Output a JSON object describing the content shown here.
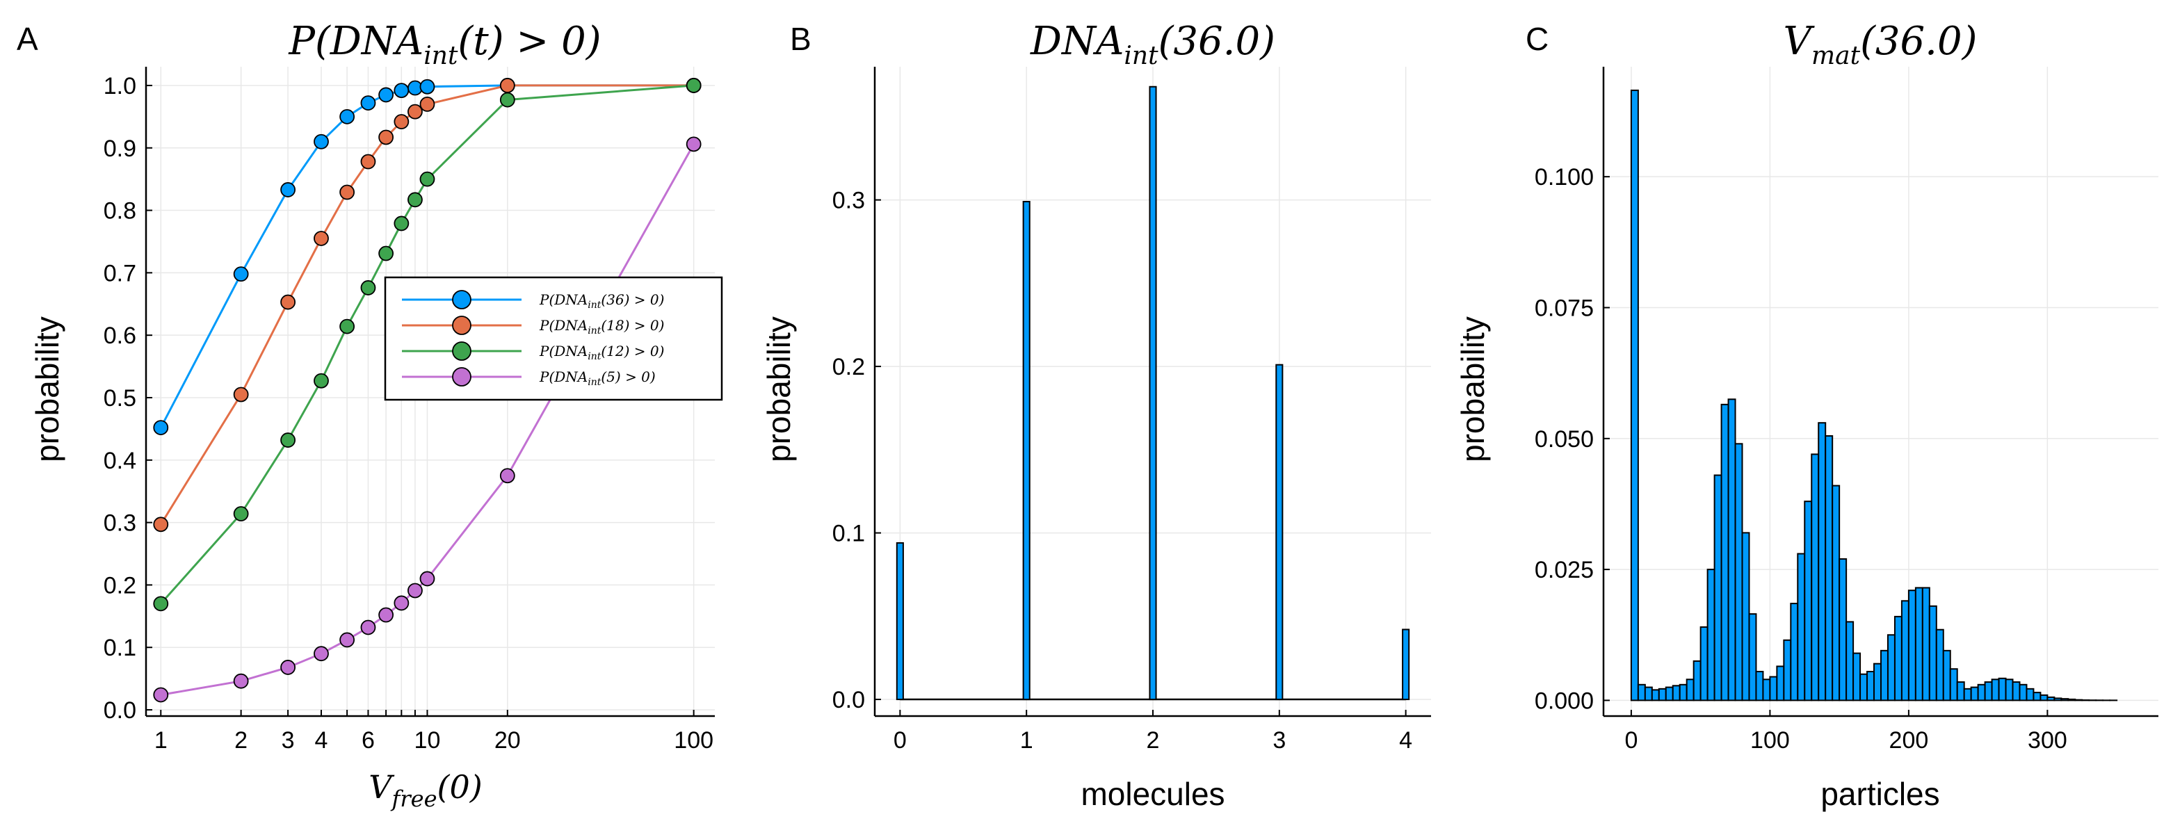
{
  "chart_data": [
    {
      "panel": "A",
      "type": "line",
      "title": "P(DNA_int(t) > 0)",
      "title_parts": {
        "pre": "P(DNA",
        "sub": "int",
        "post": "(t) > 0)"
      },
      "xlabel_parts": {
        "pre": "V",
        "sub": "free",
        "post": "(0)"
      },
      "ylabel": "probability",
      "xscale": "log",
      "xlim": [
        0.88,
        120
      ],
      "ylim": [
        -0.01,
        1.03
      ],
      "xticks": [
        1,
        2,
        3,
        4,
        6,
        10,
        20,
        100
      ],
      "xtick_labels": [
        "1",
        "2",
        "3",
        "4",
        "6",
        "10",
        "20",
        "100"
      ],
      "xgrid": [
        1,
        2,
        3,
        4,
        5,
        6,
        7,
        8,
        9,
        10,
        20,
        100
      ],
      "yticks": [
        0.0,
        0.1,
        0.2,
        0.3,
        0.4,
        0.5,
        0.6,
        0.7,
        0.8,
        0.9,
        1.0
      ],
      "ytick_labels": [
        "0.0",
        "0.1",
        "0.2",
        "0.3",
        "0.4",
        "0.5",
        "0.6",
        "0.7",
        "0.8",
        "0.9",
        "1.0"
      ],
      "legend_position": "center-right",
      "series": [
        {
          "name": "P(DNA_int(36) > 0)",
          "label_parts": {
            "pre": "P(DNA",
            "sub": "int",
            "post": "(36) > 0)"
          },
          "color": "#009AFA",
          "x": [
            1,
            2,
            3,
            4,
            5,
            6,
            7,
            8,
            9,
            10,
            20,
            100
          ],
          "y": [
            0.452,
            0.698,
            0.833,
            0.91,
            0.95,
            0.972,
            0.985,
            0.992,
            0.996,
            0.998,
            1.0,
            1.0
          ]
        },
        {
          "name": "P(DNA_int(18) > 0)",
          "label_parts": {
            "pre": "P(DNA",
            "sub": "int",
            "post": "(18) > 0)"
          },
          "color": "#E36F47",
          "x": [
            1,
            2,
            3,
            4,
            5,
            6,
            7,
            8,
            9,
            10,
            20,
            100
          ],
          "y": [
            0.297,
            0.505,
            0.653,
            0.755,
            0.829,
            0.878,
            0.917,
            0.942,
            0.958,
            0.97,
            1.0,
            1.0
          ]
        },
        {
          "name": "P(DNA_int(12) > 0)",
          "label_parts": {
            "pre": "P(DNA",
            "sub": "int",
            "post": "(12) > 0)"
          },
          "color": "#3EA44E",
          "x": [
            1,
            2,
            3,
            4,
            5,
            6,
            7,
            8,
            9,
            10,
            20,
            100
          ],
          "y": [
            0.17,
            0.314,
            0.432,
            0.527,
            0.614,
            0.676,
            0.731,
            0.779,
            0.817,
            0.85,
            0.977,
            1.0
          ]
        },
        {
          "name": "P(DNA_int(5) > 0)",
          "label_parts": {
            "pre": "P(DNA",
            "sub": "int",
            "post": "(5) > 0)"
          },
          "color": "#C271D2",
          "x": [
            1,
            2,
            3,
            4,
            5,
            6,
            7,
            8,
            9,
            10,
            20,
            100
          ],
          "y": [
            0.024,
            0.046,
            0.068,
            0.09,
            0.112,
            0.132,
            0.152,
            0.171,
            0.191,
            0.21,
            0.375,
            0.906
          ]
        }
      ]
    },
    {
      "panel": "B",
      "type": "bar",
      "title": "DNA_int(36.0)",
      "title_parts": {
        "pre": "DNA",
        "sub": "int",
        "post": "(36.0)"
      },
      "xlabel": "molecules",
      "ylabel": "probability",
      "xlim": [
        -0.2,
        4.2
      ],
      "ylim": [
        -0.01,
        0.38
      ],
      "xticks": [
        0,
        1,
        2,
        3,
        4
      ],
      "xtick_labels": [
        "0",
        "1",
        "2",
        "3",
        "4"
      ],
      "yticks": [
        0.0,
        0.1,
        0.2,
        0.3
      ],
      "ytick_labels": [
        "0.0",
        "0.1",
        "0.2",
        "0.3"
      ],
      "bar_color": "#009AFA",
      "bar_width": 0.05,
      "x": [
        0,
        1,
        2,
        3,
        4
      ],
      "values": [
        0.094,
        0.299,
        0.368,
        0.201,
        0.042
      ]
    },
    {
      "panel": "C",
      "type": "bar",
      "title": "V_mat(36.0)",
      "title_parts": {
        "pre": "V",
        "sub": "mat",
        "post": "(36.0)"
      },
      "xlabel": "particles",
      "ylabel": "probability",
      "xlim": [
        -20,
        380
      ],
      "ylim": [
        -0.003,
        0.121
      ],
      "xticks": [
        0,
        100,
        200,
        300
      ],
      "xtick_labels": [
        "0",
        "100",
        "200",
        "300"
      ],
      "yticks": [
        0.0,
        0.025,
        0.05,
        0.075,
        0.1
      ],
      "ytick_labels": [
        "0.000",
        "0.025",
        "0.050",
        "0.075",
        "0.100"
      ],
      "bar_color": "#009AFA",
      "bin_width": 5,
      "bin_start": 0,
      "values": [
        0.1165,
        0.003,
        0.0025,
        0.002,
        0.0022,
        0.0025,
        0.0028,
        0.003,
        0.004,
        0.0075,
        0.014,
        0.025,
        0.043,
        0.0565,
        0.0575,
        0.049,
        0.032,
        0.0165,
        0.0055,
        0.004,
        0.0045,
        0.0065,
        0.0115,
        0.0185,
        0.028,
        0.038,
        0.047,
        0.053,
        0.0505,
        0.041,
        0.027,
        0.015,
        0.009,
        0.005,
        0.0055,
        0.007,
        0.0095,
        0.0125,
        0.016,
        0.019,
        0.021,
        0.0215,
        0.0215,
        0.018,
        0.0135,
        0.0095,
        0.006,
        0.0035,
        0.0022,
        0.0025,
        0.003,
        0.0035,
        0.004,
        0.0042,
        0.004,
        0.0035,
        0.003,
        0.0022,
        0.0015,
        0.001,
        0.0006,
        0.0004,
        0.0003,
        0.0002,
        0.0001,
        5e-05,
        3e-05,
        2e-05,
        1e-05,
        1e-05,
        0.0,
        0.0
      ]
    }
  ]
}
